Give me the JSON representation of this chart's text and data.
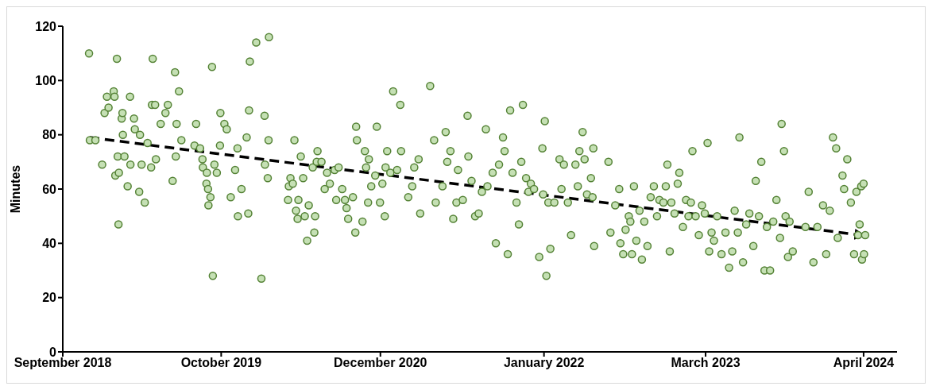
{
  "chart_data": {
    "type": "scatter",
    "ylabel": "Minutes",
    "marker": "circle",
    "ylim": [
      0,
      120
    ],
    "yticks": [
      0,
      20,
      40,
      60,
      80,
      100,
      120
    ],
    "xlim": [
      "2018-09-28",
      "2024-06-24"
    ],
    "xticks": [
      {
        "value": "2018-09-28",
        "label": "September 2018"
      },
      {
        "value": "2019-10-31",
        "label": "October 2019"
      },
      {
        "value": "2020-12-04",
        "label": "December 2020"
      },
      {
        "value": "2022-01-19",
        "label": "January 2022"
      },
      {
        "value": "2023-03-01",
        "label": "March 2023"
      },
      {
        "value": "2024-04-01",
        "label": "April 2024"
      }
    ],
    "series": [
      {
        "color": "#c5e0b4",
        "x": [
          "2018-12-03",
          "2018-12-05",
          "2018-12-19",
          "2019-01-05",
          "2019-01-11",
          "2019-01-17",
          "2019-01-21",
          "2019-02-03",
          "2019-02-05",
          "2019-02-11",
          "2019-02-15",
          "2019-02-07",
          "2019-02-13",
          "2019-02-16",
          "2019-02-23",
          "2019-02-25",
          "2019-02-26",
          "2019-03-02",
          "2019-03-10",
          "2019-03-16",
          "2019-03-17",
          "2019-03-26",
          "2019-03-28",
          "2019-04-08",
          "2019-04-10",
          "2019-04-14",
          "2019-04-22",
          "2019-04-29",
          "2019-05-08",
          "2019-05-10",
          "2019-05-12",
          "2019-05-18",
          "2019-05-20",
          "2019-06-01",
          "2019-06-13",
          "2019-06-19",
          "2019-07-01",
          "2019-07-07",
          "2019-07-09",
          "2019-07-11",
          "2019-07-17",
          "2019-07-23",
          "2019-08-25",
          "2019-08-29",
          "2019-09-08",
          "2019-09-14",
          "2019-09-15",
          "2019-09-24",
          "2019-09-25",
          "2019-09-28",
          "2019-09-29",
          "2019-10-04",
          "2019-10-08",
          "2019-10-10",
          "2019-10-14",
          "2019-10-20",
          "2019-10-28",
          "2019-10-29",
          "2019-11-08",
          "2019-11-14",
          "2019-11-24",
          "2019-12-05",
          "2019-12-11",
          "2019-12-12",
          "2019-12-21",
          "2020-01-03",
          "2020-01-09",
          "2020-01-07",
          "2020-01-11",
          "2020-01-27",
          "2020-02-09",
          "2020-02-17",
          "2020-02-18",
          "2020-02-28",
          "2020-02-27",
          "2020-02-25",
          "2020-04-16",
          "2020-04-18",
          "2020-04-22",
          "2020-04-28",
          "2020-05-02",
          "2020-05-06",
          "2020-05-10",
          "2020-05-12",
          "2020-05-18",
          "2020-05-24",
          "2020-05-28",
          "2020-06-03",
          "2020-06-07",
          "2020-06-17",
          "2020-06-21",
          "2020-06-23",
          "2020-06-27",
          "2020-06-29",
          "2020-07-09",
          "2020-07-17",
          "2020-07-23",
          "2020-07-30",
          "2020-08-11",
          "2020-08-15",
          "2020-08-21",
          "2020-08-30",
          "2020-09-06",
          "2020-09-10",
          "2020-09-14",
          "2020-09-26",
          "2020-10-02",
          "2020-10-04",
          "2020-10-06",
          "2020-10-20",
          "2020-10-26",
          "2020-10-29",
          "2020-11-03",
          "2020-11-05",
          "2020-11-11",
          "2020-11-21",
          "2020-11-25",
          "2020-12-03",
          "2020-12-09",
          "2020-12-15",
          "2020-12-17",
          "2020-12-21",
          "2020-12-29",
          "2021-01-05",
          "2021-01-15",
          "2021-01-23",
          "2021-01-25",
          "2021-02-12",
          "2021-02-22",
          "2021-02-27",
          "2021-03-10",
          "2021-03-14",
          "2021-04-08",
          "2021-04-18",
          "2021-04-22",
          "2021-05-09",
          "2021-05-17",
          "2021-05-21",
          "2021-05-29",
          "2021-06-05",
          "2021-06-13",
          "2021-06-17",
          "2021-06-29",
          "2021-07-11",
          "2021-07-13",
          "2021-07-21",
          "2021-07-30",
          "2021-08-08",
          "2021-08-16",
          "2021-08-26",
          "2021-08-30",
          "2021-09-12",
          "2021-09-20",
          "2021-09-28",
          "2021-10-08",
          "2021-10-12",
          "2021-10-20",
          "2021-10-26",
          "2021-11-01",
          "2021-11-11",
          "2021-11-17",
          "2021-11-23",
          "2021-11-27",
          "2021-12-05",
          "2021-12-11",
          "2021-12-17",
          "2021-12-25",
          "2022-01-07",
          "2022-01-15",
          "2022-01-17",
          "2022-01-21",
          "2022-01-25",
          "2022-01-30",
          "2022-02-04",
          "2022-02-14",
          "2022-02-27",
          "2022-03-04",
          "2022-03-10",
          "2022-03-20",
          "2022-03-28",
          "2022-04-08",
          "2022-04-14",
          "2022-04-18",
          "2022-04-26",
          "2022-05-01",
          "2022-05-07",
          "2022-05-17",
          "2022-05-21",
          "2022-05-25",
          "2022-05-23",
          "2022-06-30",
          "2022-07-05",
          "2022-07-17",
          "2022-07-27",
          "2022-07-30",
          "2022-08-06",
          "2022-08-12",
          "2022-08-20",
          "2022-08-24",
          "2022-08-28",
          "2022-09-02",
          "2022-09-08",
          "2022-09-16",
          "2022-09-22",
          "2022-09-28",
          "2022-10-06",
          "2022-10-14",
          "2022-10-22",
          "2022-10-30",
          "2022-11-05",
          "2022-11-15",
          "2022-11-21",
          "2022-11-25",
          "2022-12-01",
          "2022-12-05",
          "2022-12-13",
          "2022-12-21",
          "2022-12-25",
          "2023-01-03",
          "2023-01-11",
          "2023-01-17",
          "2023-01-23",
          "2023-01-27",
          "2023-02-04",
          "2023-02-12",
          "2023-02-20",
          "2023-02-27",
          "2023-03-06",
          "2023-03-10",
          "2023-03-16",
          "2023-03-22",
          "2023-03-30",
          "2023-04-10",
          "2023-04-20",
          "2023-04-29",
          "2023-05-07",
          "2023-05-13",
          "2023-05-21",
          "2023-05-25",
          "2023-06-03",
          "2023-06-11",
          "2023-06-19",
          "2023-06-29",
          "2023-07-05",
          "2023-07-13",
          "2023-07-19",
          "2023-07-27",
          "2023-08-02",
          "2023-08-10",
          "2023-08-18",
          "2023-08-26",
          "2023-09-04",
          "2023-09-08",
          "2023-09-14",
          "2023-09-18",
          "2023-09-24",
          "2023-09-28",
          "2023-10-06",
          "2023-11-07",
          "2023-11-15",
          "2023-11-27",
          "2023-12-07",
          "2023-12-21",
          "2023-12-29",
          "2024-01-07",
          "2024-01-15",
          "2024-01-23",
          "2024-01-27",
          "2024-02-08",
          "2024-02-12",
          "2024-02-20",
          "2024-02-29",
          "2024-03-08",
          "2024-03-14",
          "2024-03-18",
          "2024-03-22",
          "2024-03-26",
          "2024-03-28",
          "2024-04-01",
          "2024-04-05",
          "2024-04-02"
        ],
        "values": [
          110,
          78,
          78,
          69,
          88,
          94,
          90,
          96,
          94,
          108,
          47,
          65,
          72,
          66,
          86,
          88,
          80,
          72,
          61,
          94,
          69,
          86,
          82,
          59,
          80,
          69,
          55,
          77,
          68,
          91,
          108,
          91,
          71,
          84,
          88,
          91,
          63,
          103,
          72,
          84,
          96,
          78,
          76,
          84,
          75,
          71,
          68,
          62,
          66,
          60,
          54,
          57,
          105,
          28,
          69,
          66,
          76,
          88,
          84,
          82,
          57,
          67,
          75,
          50,
          60,
          79,
          89,
          51,
          107,
          114,
          27,
          87,
          69,
          116,
          78,
          64,
          56,
          61,
          64,
          62,
          78,
          52,
          49,
          56,
          72,
          64,
          50,
          41,
          54,
          68,
          44,
          50,
          70,
          74,
          70,
          60,
          66,
          62,
          67,
          56,
          68,
          60,
          56,
          53,
          49,
          57,
          44,
          83,
          78,
          48,
          74,
          68,
          55,
          71,
          61,
          65,
          83,
          55,
          62,
          50,
          68,
          74,
          66,
          96,
          67,
          91,
          74,
          57,
          61,
          68,
          71,
          51,
          98,
          78,
          55,
          61,
          81,
          70,
          74,
          49,
          55,
          67,
          56,
          87,
          72,
          63,
          50,
          51,
          59,
          82,
          61,
          66,
          40,
          69,
          79,
          74,
          36,
          89,
          66,
          55,
          47,
          70,
          91,
          64,
          59,
          62,
          60,
          35,
          75,
          58,
          85,
          28,
          55,
          38,
          55,
          71,
          60,
          69,
          55,
          43,
          69,
          61,
          74,
          81,
          71,
          58,
          64,
          57,
          39,
          75,
          70,
          44,
          54,
          60,
          40,
          36,
          45,
          50,
          48,
          36,
          61,
          41,
          52,
          34,
          48,
          39,
          57,
          61,
          50,
          56,
          55,
          61,
          69,
          37,
          55,
          51,
          62,
          66,
          46,
          56,
          50,
          55,
          74,
          50,
          43,
          54,
          51,
          77,
          37,
          44,
          41,
          50,
          36,
          44,
          31,
          37,
          52,
          44,
          79,
          33,
          47,
          51,
          39,
          63,
          50,
          70,
          30,
          46,
          30,
          48,
          56,
          42,
          84,
          74,
          50,
          35,
          48,
          37,
          46,
          59,
          33,
          46,
          54,
          36,
          52,
          79,
          75,
          42,
          65,
          60,
          71,
          55,
          36,
          59,
          43,
          47,
          61,
          34,
          62,
          43,
          36
        ]
      },
      {
        "type": "line",
        "color": "#000000",
        "line_style": "dashed",
        "marker": "none",
        "x": [
          "2018-12-05",
          "2024-03-26"
        ],
        "values": [
          79,
          43
        ]
      }
    ]
  }
}
